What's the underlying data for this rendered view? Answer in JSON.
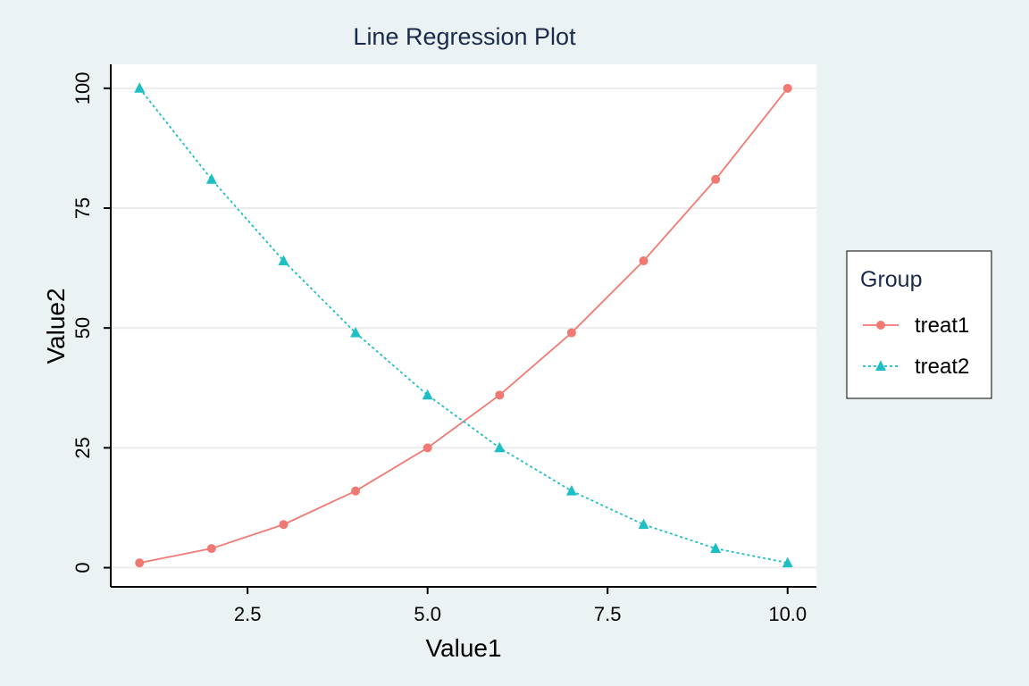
{
  "chart_data": {
    "type": "line",
    "title": "Line Regression Plot",
    "xlabel": "Value1",
    "ylabel": "Value2",
    "xlim": [
      0.6,
      10.4
    ],
    "ylim": [
      -4,
      105
    ],
    "xticks": [
      2.5,
      5.0,
      7.5,
      10.0
    ],
    "xtick_labels": [
      "2.5",
      "5.0",
      "7.5",
      "10.0"
    ],
    "yticks": [
      0,
      25,
      50,
      75,
      100
    ],
    "ytick_labels": [
      "0",
      "25",
      "50",
      "75",
      "100"
    ],
    "grid": true,
    "legend": {
      "title": "Group",
      "position": "right"
    },
    "x": [
      1,
      2,
      3,
      4,
      5,
      6,
      7,
      8,
      9,
      10
    ],
    "series": [
      {
        "name": "treat1",
        "color": "#f07a73",
        "marker": "circle",
        "line": "solid",
        "values": [
          1,
          4,
          9,
          16,
          25,
          36,
          49,
          64,
          81,
          100
        ]
      },
      {
        "name": "treat2",
        "color": "#1dbfc4",
        "marker": "triangle",
        "line": "dotted",
        "values": [
          100,
          81,
          64,
          49,
          36,
          25,
          16,
          9,
          4,
          1
        ]
      }
    ]
  }
}
